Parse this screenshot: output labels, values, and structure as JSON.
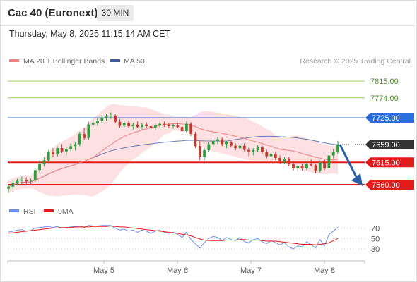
{
  "header": {
    "title": "Cac 40 (Euronext)",
    "timeframe": "30 MIN",
    "datetime": "Thursday, May 8, 2025 11:15:14 AM CET"
  },
  "legend": {
    "ma20_bb": "MA 20 + Bollinger Bands",
    "ma50": "MA 50",
    "credit": "Research © 2025 Trading Central",
    "rsi": "RSI",
    "rsi_ma": "9MA"
  },
  "colors": {
    "ma20": "#f08080",
    "bollinger_fill": "#fbd6d8",
    "ma50": "#6a7fb3",
    "candle_up": "#2e9e3f",
    "candle_down": "#c23a2b",
    "resistance_green": "#9ccc65",
    "pivot_blue": "#2a6fdb",
    "support_red": "#e31b1b",
    "last_price": "#333333",
    "rsi": "#6f8fe8",
    "rsi_ma": "#e31b1b",
    "arrow": "#2a5fa8"
  },
  "chart_data": [
    {
      "type": "candlestick",
      "x_axis": {
        "labels": [
          "May 5",
          "May 6",
          "May 7",
          "May 8"
        ]
      },
      "y_range": [
        7520,
        7850
      ],
      "levels": [
        {
          "value": 7815.0,
          "label": "7815.00",
          "kind": "resistance"
        },
        {
          "value": 7774.0,
          "label": "7774.00",
          "kind": "resistance"
        },
        {
          "value": 7725.0,
          "label": "7725.00",
          "kind": "pivot"
        },
        {
          "value": 7659.0,
          "label": "7659.00",
          "kind": "last"
        },
        {
          "value": 7615.0,
          "label": "7615.00",
          "kind": "support"
        },
        {
          "value": 7560.0,
          "label": "7560.00",
          "kind": "support"
        }
      ],
      "arrow": {
        "from": 7659,
        "to": 7560,
        "direction": "down"
      },
      "ohlc": [
        [
          7550,
          7560,
          7540,
          7555
        ],
        [
          7555,
          7570,
          7548,
          7565
        ],
        [
          7565,
          7575,
          7558,
          7570
        ],
        [
          7570,
          7580,
          7562,
          7572
        ],
        [
          7572,
          7578,
          7560,
          7568
        ],
        [
          7568,
          7575,
          7560,
          7570
        ],
        [
          7570,
          7600,
          7566,
          7596
        ],
        [
          7596,
          7620,
          7590,
          7612
        ],
        [
          7612,
          7628,
          7605,
          7620
        ],
        [
          7620,
          7645,
          7615,
          7640
        ],
        [
          7640,
          7650,
          7628,
          7635
        ],
        [
          7635,
          7655,
          7630,
          7650
        ],
        [
          7650,
          7660,
          7638,
          7642
        ],
        [
          7642,
          7652,
          7632,
          7648
        ],
        [
          7648,
          7662,
          7640,
          7655
        ],
        [
          7655,
          7665,
          7645,
          7660
        ],
        [
          7660,
          7690,
          7655,
          7685
        ],
        [
          7685,
          7700,
          7670,
          7675
        ],
        [
          7675,
          7715,
          7670,
          7708
        ],
        [
          7708,
          7720,
          7700,
          7712
        ],
        [
          7712,
          7725,
          7705,
          7718
        ],
        [
          7718,
          7732,
          7712,
          7725
        ],
        [
          7725,
          7735,
          7718,
          7728
        ],
        [
          7728,
          7738,
          7722,
          7730
        ],
        [
          7730,
          7735,
          7712,
          7715
        ],
        [
          7715,
          7722,
          7700,
          7705
        ],
        [
          7705,
          7718,
          7700,
          7712
        ],
        [
          7712,
          7718,
          7700,
          7704
        ],
        [
          7704,
          7712,
          7696,
          7708
        ],
        [
          7708,
          7716,
          7700,
          7702
        ],
        [
          7702,
          7712,
          7696,
          7708
        ],
        [
          7708,
          7714,
          7700,
          7704
        ],
        [
          7704,
          7712,
          7696,
          7700
        ],
        [
          7700,
          7710,
          7694,
          7706
        ],
        [
          7706,
          7714,
          7700,
          7710
        ],
        [
          7710,
          7716,
          7702,
          7708
        ],
        [
          7708,
          7712,
          7700,
          7704
        ],
        [
          7704,
          7710,
          7698,
          7706
        ],
        [
          7706,
          7712,
          7700,
          7702
        ],
        [
          7702,
          7708,
          7690,
          7692
        ],
        [
          7692,
          7716,
          7688,
          7710
        ],
        [
          7710,
          7714,
          7680,
          7685
        ],
        [
          7685,
          7690,
          7650,
          7655
        ],
        [
          7655,
          7668,
          7620,
          7628
        ],
        [
          7628,
          7650,
          7620,
          7645
        ],
        [
          7645,
          7665,
          7640,
          7660
        ],
        [
          7660,
          7672,
          7652,
          7668
        ],
        [
          7668,
          7678,
          7660,
          7672
        ],
        [
          7672,
          7676,
          7655,
          7660
        ],
        [
          7660,
          7668,
          7650,
          7664
        ],
        [
          7664,
          7670,
          7652,
          7656
        ],
        [
          7656,
          7662,
          7645,
          7650
        ],
        [
          7650,
          7660,
          7640,
          7656
        ],
        [
          7656,
          7662,
          7642,
          7646
        ],
        [
          7646,
          7652,
          7630,
          7640
        ],
        [
          7640,
          7650,
          7632,
          7645
        ],
        [
          7645,
          7658,
          7640,
          7652
        ],
        [
          7652,
          7656,
          7635,
          7640
        ],
        [
          7640,
          7646,
          7625,
          7630
        ],
        [
          7630,
          7640,
          7622,
          7636
        ],
        [
          7636,
          7642,
          7620,
          7626
        ],
        [
          7626,
          7632,
          7612,
          7618
        ],
        [
          7618,
          7628,
          7612,
          7624
        ],
        [
          7624,
          7628,
          7605,
          7610
        ],
        [
          7610,
          7618,
          7595,
          7600
        ],
        [
          7600,
          7612,
          7592,
          7606
        ],
        [
          7606,
          7612,
          7595,
          7600
        ],
        [
          7600,
          7618,
          7596,
          7612
        ],
        [
          7612,
          7622,
          7605,
          7608
        ],
        [
          7608,
          7612,
          7588,
          7595
        ],
        [
          7595,
          7620,
          7590,
          7615
        ],
        [
          7615,
          7622,
          7596,
          7600
        ],
        [
          7600,
          7640,
          7598,
          7632
        ],
        [
          7632,
          7648,
          7625,
          7640
        ],
        [
          7640,
          7668,
          7636,
          7659
        ]
      ]
    },
    {
      "type": "line",
      "name": "RSI",
      "y_ticks": [
        70,
        50,
        30
      ],
      "y_range": [
        10,
        80
      ],
      "values": [
        62,
        64,
        66,
        67,
        64,
        65,
        70,
        71,
        72,
        73,
        71,
        73,
        70,
        71,
        72,
        73,
        74,
        71,
        75,
        74,
        74,
        75,
        75,
        75,
        70,
        66,
        68,
        64,
        66,
        62,
        66,
        64,
        60,
        64,
        66,
        62,
        60,
        62,
        58,
        52,
        62,
        48,
        40,
        32,
        42,
        50,
        54,
        52,
        46,
        52,
        48,
        46,
        52,
        44,
        42,
        48,
        50,
        44,
        40,
        46,
        42,
        38,
        42,
        34,
        30,
        36,
        34,
        44,
        38,
        32,
        48,
        36,
        58,
        64,
        72
      ],
      "ma_values": [
        60,
        61,
        62,
        63,
        64,
        65,
        66,
        67,
        68,
        69,
        70,
        70,
        71,
        71,
        71,
        72,
        72,
        72,
        72,
        73,
        73,
        73,
        73,
        74,
        73,
        72,
        72,
        71,
        70,
        69,
        68,
        67,
        66,
        65,
        64,
        63,
        62,
        61,
        60,
        58,
        57,
        55,
        52,
        49,
        47,
        46,
        46,
        46,
        46,
        47,
        47,
        47,
        48,
        48,
        47,
        47,
        47,
        46,
        45,
        45,
        45,
        44,
        43,
        42,
        41,
        40,
        39,
        39,
        39,
        38,
        39,
        40,
        42,
        46,
        50
      ]
    }
  ]
}
